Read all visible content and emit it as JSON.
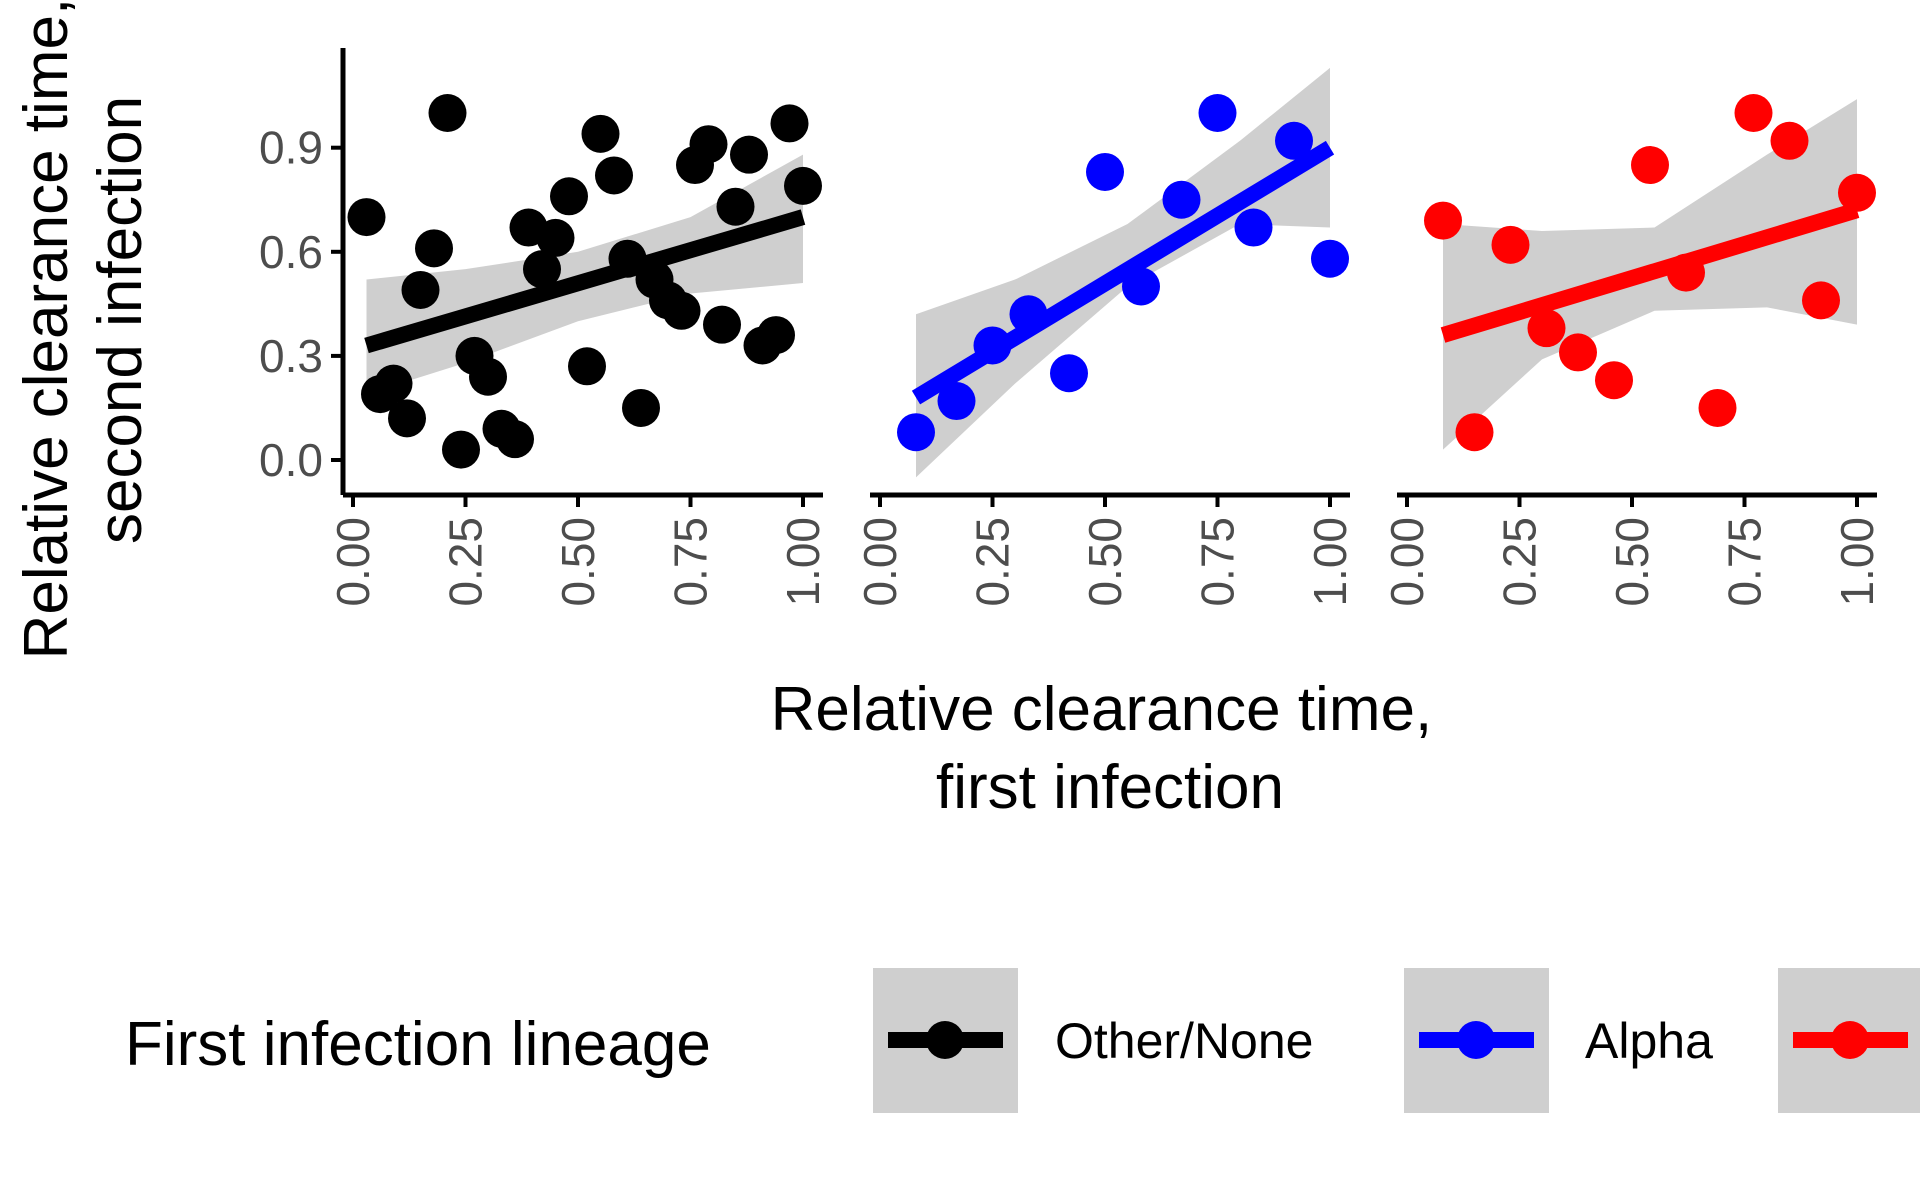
{
  "chart_data": {
    "type": "scatter",
    "ylabel_lines": [
      "Relative clearance time,",
      "second infection"
    ],
    "xlabel_lines": [
      "Relative clearance time,",
      "first infection"
    ],
    "xlim": [
      0,
      1
    ],
    "ylim": [
      0,
      1
    ],
    "x_ticks": [
      "0.00",
      "0.25",
      "0.50",
      "0.75",
      "1.00"
    ],
    "y_ticks": [
      "0.0",
      "0.3",
      "0.6",
      "0.9"
    ],
    "grid": false,
    "legend": {
      "title": "First infection lineage",
      "position": "bottom"
    },
    "series": [
      {
        "name": "Other/None",
        "color": "#000000",
        "points": [
          [
            0.03,
            0.7
          ],
          [
            0.06,
            0.19
          ],
          [
            0.09,
            0.22
          ],
          [
            0.12,
            0.12
          ],
          [
            0.15,
            0.49
          ],
          [
            0.18,
            0.61
          ],
          [
            0.21,
            1.0
          ],
          [
            0.24,
            0.03
          ],
          [
            0.27,
            0.3
          ],
          [
            0.3,
            0.24
          ],
          [
            0.33,
            0.09
          ],
          [
            0.36,
            0.06
          ],
          [
            0.39,
            0.67
          ],
          [
            0.42,
            0.55
          ],
          [
            0.45,
            0.64
          ],
          [
            0.48,
            0.76
          ],
          [
            0.52,
            0.27
          ],
          [
            0.55,
            0.94
          ],
          [
            0.58,
            0.82
          ],
          [
            0.61,
            0.58
          ],
          [
            0.64,
            0.15
          ],
          [
            0.67,
            0.52
          ],
          [
            0.7,
            0.46
          ],
          [
            0.73,
            0.43
          ],
          [
            0.76,
            0.85
          ],
          [
            0.79,
            0.91
          ],
          [
            0.82,
            0.39
          ],
          [
            0.85,
            0.73
          ],
          [
            0.88,
            0.88
          ],
          [
            0.91,
            0.33
          ],
          [
            0.94,
            0.36
          ],
          [
            0.97,
            0.97
          ],
          [
            1.0,
            0.79
          ]
        ],
        "fit": {
          "x": [
            0.03,
            1.0
          ],
          "y": [
            0.33,
            0.7
          ]
        },
        "band": {
          "x": [
            0.03,
            0.25,
            0.5,
            0.75,
            1.0
          ],
          "lower": [
            0.19,
            0.28,
            0.4,
            0.48,
            0.51
          ],
          "upper": [
            0.52,
            0.55,
            0.6,
            0.7,
            0.88
          ]
        }
      },
      {
        "name": "Alpha",
        "color": "#0000ff",
        "points": [
          [
            0.08,
            0.08
          ],
          [
            0.17,
            0.17
          ],
          [
            0.25,
            0.33
          ],
          [
            0.33,
            0.42
          ],
          [
            0.42,
            0.25
          ],
          [
            0.5,
            0.83
          ],
          [
            0.58,
            0.5
          ],
          [
            0.67,
            0.75
          ],
          [
            0.75,
            1.0
          ],
          [
            0.83,
            0.67
          ],
          [
            0.92,
            0.92
          ],
          [
            1.0,
            0.58
          ]
        ],
        "fit": {
          "x": [
            0.08,
            1.0
          ],
          "y": [
            0.18,
            0.9
          ]
        },
        "band": {
          "x": [
            0.08,
            0.3,
            0.55,
            0.8,
            1.0
          ],
          "lower": [
            -0.05,
            0.22,
            0.5,
            0.68,
            0.67
          ],
          "upper": [
            0.42,
            0.52,
            0.68,
            0.92,
            1.13
          ]
        }
      },
      {
        "name": "",
        "color": "#ff0000",
        "points": [
          [
            0.08,
            0.69
          ],
          [
            0.15,
            0.08
          ],
          [
            0.23,
            0.62
          ],
          [
            0.31,
            0.38
          ],
          [
            0.38,
            0.31
          ],
          [
            0.46,
            0.23
          ],
          [
            0.54,
            0.85
          ],
          [
            0.62,
            0.54
          ],
          [
            0.69,
            0.15
          ],
          [
            0.77,
            1.0
          ],
          [
            0.85,
            0.92
          ],
          [
            0.92,
            0.46
          ],
          [
            1.0,
            0.77
          ]
        ],
        "fit": {
          "x": [
            0.08,
            1.0
          ],
          "y": [
            0.36,
            0.72
          ]
        },
        "band": {
          "x": [
            0.08,
            0.3,
            0.55,
            0.8,
            1.0
          ],
          "lower": [
            0.03,
            0.29,
            0.43,
            0.44,
            0.39
          ],
          "upper": [
            0.68,
            0.66,
            0.67,
            0.88,
            1.04
          ]
        }
      }
    ]
  },
  "legend_labels": [
    "Other/None",
    "Alpha",
    ""
  ]
}
